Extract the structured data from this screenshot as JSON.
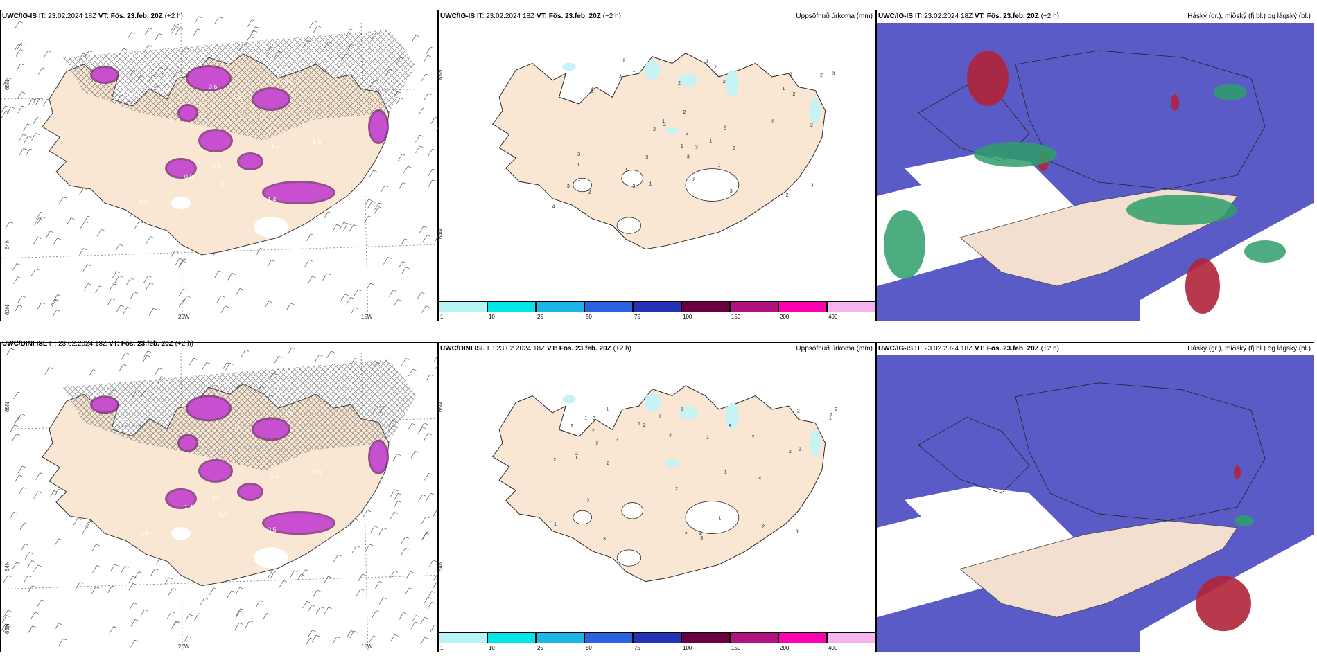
{
  "rows": [
    {
      "wind": {
        "model": "UWC/IG-IS",
        "it_label": "IT:",
        "it": "23.02.2024 18Z",
        "vt_label": "VT:",
        "vt": "Fös. 23.feb. 20Z",
        "lead": "(+2 h)",
        "lat_labels": [
          "65N",
          "64N",
          "63N"
        ],
        "lon_labels": [
          "20W",
          "15W"
        ],
        "numbers": [
          "1.4",
          "1.4",
          "0.4",
          "0.9",
          "0.9",
          "1.6",
          "1.0",
          "0.6",
          "1.0",
          "0.9",
          "1.5",
          "0.6"
        ]
      },
      "precip": {
        "model": "UWC/IG-IS",
        "it_label": "IT:",
        "it": "23.02.2024 18Z",
        "vt_label": "VT:",
        "vt": "Fös. 23.feb. 20Z",
        "lead": "(+2 h)",
        "title": "Uppsöfnuð úrkoma (mm)",
        "lat_labels": [
          "65N",
          "64N"
        ],
        "values": [
          "3",
          "2",
          "2",
          "2",
          "1",
          "2",
          "2",
          "3",
          "3",
          "2",
          "1",
          "1",
          "3",
          "3",
          "1",
          "2",
          "2",
          "2",
          "2",
          "3",
          "3",
          "1",
          "2",
          "2",
          "1",
          "3",
          "2",
          "3",
          "2",
          "2",
          "1",
          "3",
          "2",
          "2",
          "1",
          "2",
          "3",
          "4",
          "2",
          "2",
          "1",
          "2"
        ]
      },
      "cloud": {
        "model": "UWC/IG-IS",
        "it_label": "IT:",
        "it": "23.02.2024 18Z",
        "vt_label": "VT:",
        "vt": "Fös. 23.feb. 20Z",
        "lead": "(+2 h)",
        "title": "Háský (gr.), miðský (fj.bl.) og lágský (bl.)"
      }
    },
    {
      "wind": {
        "model": "UWC/DINI ISL",
        "it_label": "IT:",
        "it": "23.02.2024 18Z",
        "vt_label": "VT:",
        "vt": "Fös. 23.feb. 20Z",
        "lead": "(+2 h)",
        "lat_labels": [
          "65N",
          "64N",
          "63N"
        ],
        "lon_labels": [
          "20W",
          "15W"
        ],
        "numbers": [
          "0.5",
          "0.5",
          "1.4",
          "1.8",
          "1.4",
          "1.0",
          "0.5",
          "1.4",
          "0.5",
          "1.6",
          "0.6"
        ]
      },
      "precip": {
        "model": "UWC/DINI ISL",
        "it_label": "IT:",
        "it": "23.02.2024 18Z",
        "vt_label": "VT:",
        "vt": "Fös. 23.feb. 20Z",
        "lead": "(+2 h)",
        "title": "Uppsöfnuð úrkoma (mm)",
        "lat_labels": [
          "65N",
          "64N"
        ],
        "values": [
          "3",
          "2",
          "1",
          "2",
          "4",
          "3",
          "3",
          "3",
          "2",
          "3",
          "2",
          "1",
          "1",
          "2",
          "2",
          "2",
          "1",
          "2",
          "2",
          "3",
          "2",
          "1",
          "2",
          "2",
          "2",
          "1",
          "3",
          "2",
          "4",
          "1",
          "2",
          "1",
          "2",
          "1",
          "2",
          "2",
          "1"
        ]
      },
      "cloud": {
        "model": "UWC/IG-IS",
        "it_label": "IT:",
        "it": "23.02.2024 18Z",
        "vt_label": "VT:",
        "vt": "Fös. 23.feb. 20Z",
        "lead": "(+2 h)",
        "title": "Háský (gr.), miðský (fj.bl.) og lágský (bl.)"
      }
    }
  ],
  "colorbar": {
    "ticks": [
      "1",
      "10",
      "25",
      "50",
      "75",
      "100",
      "150",
      "200",
      "400"
    ],
    "colors": [
      "#b9f4f4",
      "#00e5e5",
      "#1cb6e6",
      "#2a63e0",
      "#2433b5",
      "#6a0040",
      "#b0127f",
      "#ff00b0",
      "#f5b3f0"
    ]
  },
  "colors": {
    "land": "#f9e6d3",
    "land_cloud": "#f2dfcf",
    "precip_light": "#c7f3f4",
    "snow_magenta": "#c84fd0",
    "snow_dark": "#7a2a78",
    "high_cloud": "#5b5bc7",
    "mid_cloud": "#2e9f6a",
    "low_cloud": "#b02338"
  }
}
